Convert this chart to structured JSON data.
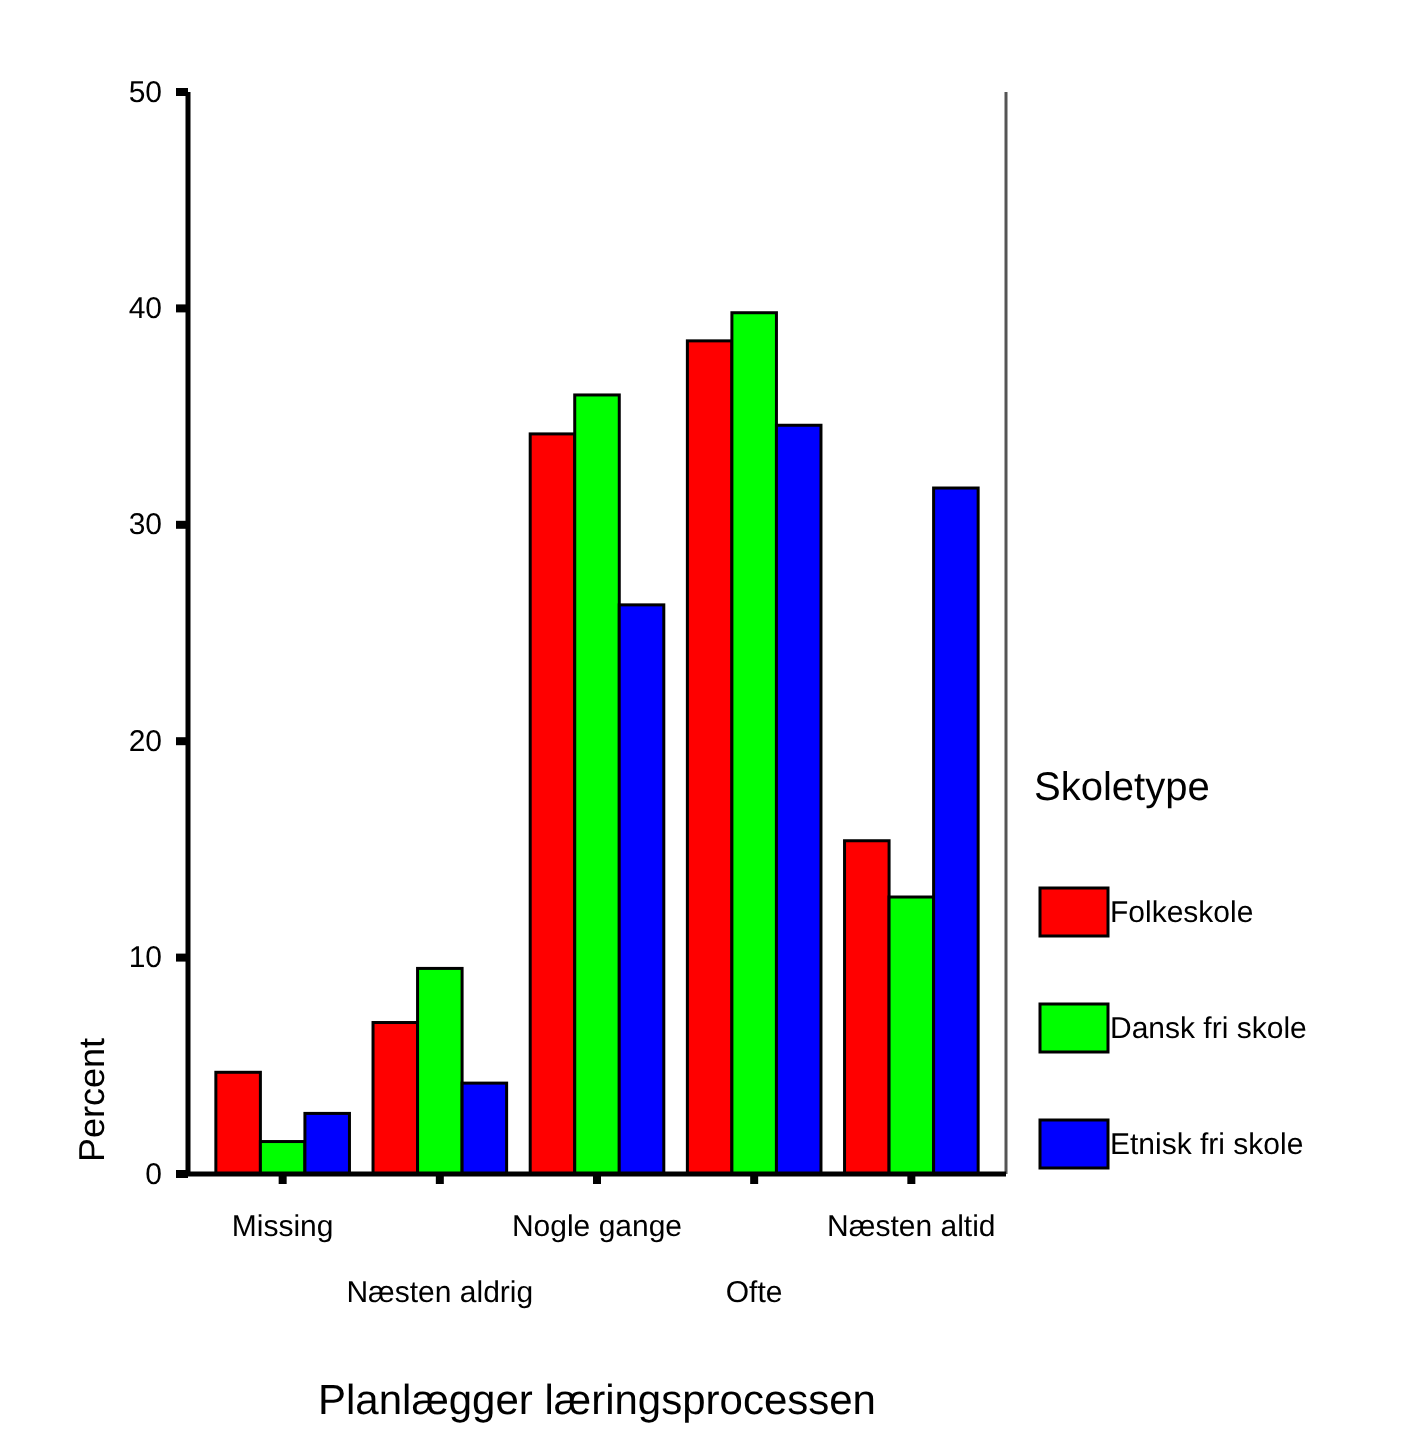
{
  "chart_data": {
    "type": "bar",
    "xlabel": "Planlægger læringsprocessen",
    "ylabel": "Percent",
    "legend_title": "Skoletype",
    "legend": "right",
    "categories": [
      "Missing",
      "Næsten aldrig",
      "Nogle gange",
      "Ofte",
      "Næsten altid"
    ],
    "series": [
      {
        "name": "Folkeskole",
        "color": "#ff0000",
        "values": [
          4.7,
          7.0,
          34.2,
          38.5,
          15.4
        ]
      },
      {
        "name": "Dansk fri skole",
        "color": "#00ff00",
        "values": [
          1.5,
          9.5,
          36.0,
          39.8,
          12.8
        ]
      },
      {
        "name": "Etnisk fri skole",
        "color": "#0000ff",
        "values": [
          2.8,
          4.2,
          26.3,
          34.6,
          31.7
        ]
      }
    ],
    "ylim": [
      0,
      50
    ],
    "yticks": [
      0,
      10,
      20,
      30,
      40,
      50
    ]
  }
}
